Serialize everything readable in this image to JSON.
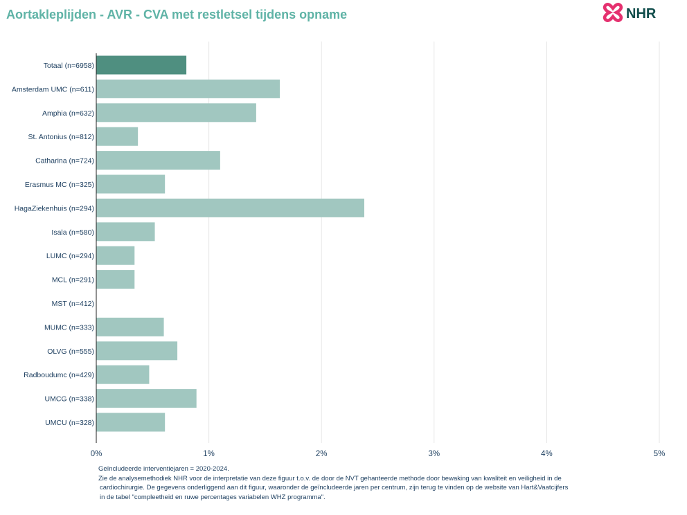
{
  "title": "Aortakleplijden - AVR - CVA met restletsel tijdens opname",
  "logo": {
    "text": "NHR",
    "icon": "nhr-cross-logo-icon"
  },
  "colors": {
    "title": "#5fb3a6",
    "total_bar": "#4f8f80",
    "bar": "#a1c7c0",
    "label": "#1b3d5e",
    "grid": "#e6e6e6",
    "logo_pink": "#e5316f",
    "logo_text": "#0f4c4a"
  },
  "chart_data": {
    "type": "bar",
    "orientation": "horizontal",
    "categories": [
      "Totaal (n=6958)",
      "Amsterdam UMC (n=611)",
      "Amphia (n=632)",
      "St. Antonius (n=812)",
      "Catharina (n=724)",
      "Erasmus MC (n=325)",
      "HagaZiekenhuis (n=294)",
      "Isala (n=580)",
      "LUMC (n=294)",
      "MCL (n=291)",
      "MST (n=412)",
      "MUMC (n=333)",
      "OLVG (n=555)",
      "Radboudumc (n=429)",
      "UMCG (n=338)",
      "UMCU (n=328)"
    ],
    "values": [
      0.8,
      1.63,
      1.42,
      0.37,
      1.1,
      0.61,
      2.38,
      0.52,
      0.34,
      0.34,
      0.0,
      0.6,
      0.72,
      0.47,
      0.89,
      0.61
    ],
    "highlight_index": 0,
    "xlim": [
      0,
      5
    ],
    "xticks": [
      0,
      1,
      2,
      3,
      4,
      5
    ],
    "xtick_labels": [
      "0%",
      "1%",
      "2%",
      "3%",
      "4%",
      "5%"
    ],
    "xlabel": "",
    "ylabel": "",
    "grid": "vertical",
    "legend": "none"
  },
  "footnote": {
    "line1": "Geïncludeerde interventiejaren = 2020-2024.",
    "line2": "Zie de analysemethodiek NHR voor de interpretatie van deze figuur t.o.v. de door de NVT gehanteerde methode door bewaking van kwaliteit en veiligheid in de",
    "line3": "cardiochirurgie. De gegevens onderliggend aan dit figuur, waaronder de geïncludeerde jaren per centrum, zijn terug te vinden op de website van Hart&Vaatcijfers",
    "line4": "in de tabel \"compleetheid en ruwe percentages variabelen WHZ programma\"."
  }
}
